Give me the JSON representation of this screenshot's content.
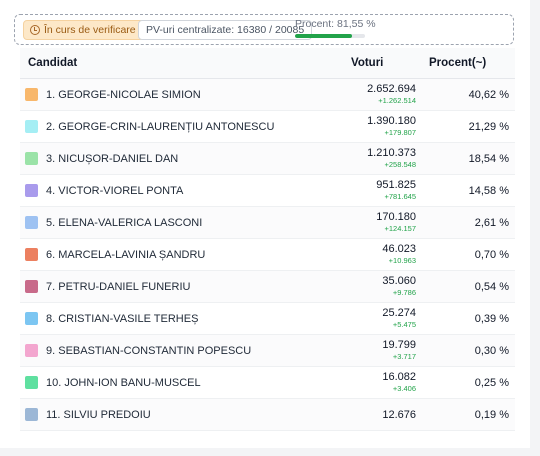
{
  "status": {
    "verify_label": "În curs de verificare",
    "pv_label": "PV-uri centralizate: 16380 / 20085",
    "percent_label": "Procent: 81,55 %",
    "percent_value": 81.55
  },
  "table": {
    "headers": {
      "candidate": "Candidat",
      "votes": "Voturi",
      "percent": "Procent(~)"
    },
    "rows": [
      {
        "name": "1. GEORGE-NICOLAE SIMION",
        "votes": "2.652.694",
        "delta": "+1.262.514",
        "percent": "40,62 %",
        "color": "#f8b76b"
      },
      {
        "name": "2. GEORGE-CRIN-LAURENȚIU ANTONESCU",
        "votes": "1.390.180",
        "delta": "+179.807",
        "percent": "21,29 %",
        "color": "#a5eef4"
      },
      {
        "name": "3. NICUȘOR-DANIEL DAN",
        "votes": "1.210.373",
        "delta": "+258.548",
        "percent": "18,54 %",
        "color": "#9be3a8"
      },
      {
        "name": "4. VICTOR-VIOREL PONTA",
        "votes": "951.825",
        "delta": "+781.645",
        "percent": "14,58 %",
        "color": "#a99bec"
      },
      {
        "name": "5. ELENA-VALERICA LASCONI",
        "votes": "170.180",
        "delta": "+124.157",
        "percent": "2,61 %",
        "color": "#9ec2f2"
      },
      {
        "name": "6. MARCELA-LAVINIA ȘANDRU",
        "votes": "46.023",
        "delta": "+10.963",
        "percent": "0,70 %",
        "color": "#ec8060"
      },
      {
        "name": "7. PETRU-DANIEL FUNERIU",
        "votes": "35.060",
        "delta": "+9.786",
        "percent": "0,54 %",
        "color": "#c86a8a"
      },
      {
        "name": "8. CRISTIAN-VASILE TERHEȘ",
        "votes": "25.274",
        "delta": "+5.475",
        "percent": "0,39 %",
        "color": "#7cc6f2"
      },
      {
        "name": "9. SEBASTIAN-CONSTANTIN POPESCU",
        "votes": "19.799",
        "delta": "+3.717",
        "percent": "0,30 %",
        "color": "#f3a6cf"
      },
      {
        "name": "10. JOHN-ION BANU-MUSCEL",
        "votes": "16.082",
        "delta": "+3.406",
        "percent": "0,25 %",
        "color": "#5fe0a0"
      },
      {
        "name": "11. SILVIU PREDOIU",
        "votes": "12.676",
        "delta": "",
        "percent": "0,19 %",
        "color": "#9cb7d6"
      }
    ]
  }
}
